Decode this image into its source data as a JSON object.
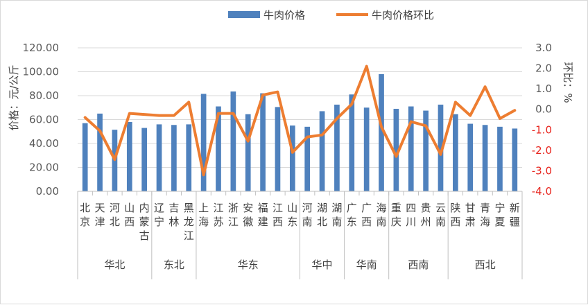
{
  "chart_data": {
    "type": "bar+line",
    "legend": {
      "position": "top",
      "entries": [
        "牛肉价格",
        "牛肉价格环比"
      ]
    },
    "y_left": {
      "label": "价格：元/公斤",
      "range": [
        0,
        120
      ],
      "ticks": [
        "120.00",
        "100.00",
        "80.00",
        "60.00",
        "40.00",
        "20.00",
        "0.00"
      ]
    },
    "y_right": {
      "label": "环比：%",
      "range": [
        -4,
        3
      ],
      "ticks": [
        "3.0",
        "2.0",
        "1.0",
        "0.0",
        "-1.0",
        "-2.0",
        "-3.0",
        "-4.0"
      ]
    },
    "grid": "horizontal",
    "categories": [
      {
        "name": "北京",
        "lines": [
          "北",
          "京"
        ]
      },
      {
        "name": "天津",
        "lines": [
          "天",
          "津"
        ]
      },
      {
        "name": "河北",
        "lines": [
          "河",
          "北"
        ]
      },
      {
        "name": "山西",
        "lines": [
          "山",
          "西"
        ]
      },
      {
        "name": "内蒙古",
        "lines": [
          "内",
          "蒙",
          "古"
        ]
      },
      {
        "name": "辽宁",
        "lines": [
          "辽",
          "宁"
        ]
      },
      {
        "name": "吉林",
        "lines": [
          "吉",
          "林"
        ]
      },
      {
        "name": "黑龙江",
        "lines": [
          "黑",
          "龙",
          "江"
        ]
      },
      {
        "name": "上海",
        "lines": [
          "上",
          "海"
        ]
      },
      {
        "name": "江苏",
        "lines": [
          "江",
          "苏"
        ]
      },
      {
        "name": "浙江",
        "lines": [
          "浙",
          "江"
        ]
      },
      {
        "name": "安徽",
        "lines": [
          "安",
          "徽"
        ]
      },
      {
        "name": "福建",
        "lines": [
          "福",
          "建"
        ]
      },
      {
        "name": "江西",
        "lines": [
          "江",
          "西"
        ]
      },
      {
        "name": "山东",
        "lines": [
          "山",
          "东"
        ]
      },
      {
        "name": "河南",
        "lines": [
          "河",
          "南"
        ]
      },
      {
        "name": "湖北",
        "lines": [
          "湖",
          "北"
        ]
      },
      {
        "name": "湖南",
        "lines": [
          "湖",
          "南"
        ]
      },
      {
        "name": "广东",
        "lines": [
          "广",
          "东"
        ]
      },
      {
        "name": "广西",
        "lines": [
          "广",
          "西"
        ]
      },
      {
        "name": "海南",
        "lines": [
          "海",
          "南"
        ]
      },
      {
        "name": "重庆",
        "lines": [
          "重",
          "庆"
        ]
      },
      {
        "name": "四川",
        "lines": [
          "四",
          "川"
        ]
      },
      {
        "name": "贵州",
        "lines": [
          "贵",
          "州"
        ]
      },
      {
        "name": "云南",
        "lines": [
          "云",
          "南"
        ]
      },
      {
        "name": "陕西",
        "lines": [
          "陕",
          "西"
        ]
      },
      {
        "name": "甘肃",
        "lines": [
          "甘",
          "肃"
        ]
      },
      {
        "name": "青海",
        "lines": [
          "青",
          "海"
        ]
      },
      {
        "name": "宁夏",
        "lines": [
          "宁",
          "夏"
        ]
      },
      {
        "name": "新疆",
        "lines": [
          "新",
          "疆"
        ]
      }
    ],
    "regions": [
      {
        "name": "华北",
        "count": 5
      },
      {
        "name": "东北",
        "count": 3
      },
      {
        "name": "华东",
        "count": 7
      },
      {
        "name": "华中",
        "count": 3
      },
      {
        "name": "华南",
        "count": 3
      },
      {
        "name": "西南",
        "count": 4
      },
      {
        "name": "西北",
        "count": 5
      }
    ],
    "series": [
      {
        "name": "牛肉价格",
        "type": "bar",
        "axis": "left",
        "color": "#4f81bd",
        "values": [
          57,
          65,
          51.5,
          58,
          53,
          56,
          55.5,
          56,
          81.5,
          71,
          83.5,
          64.5,
          82,
          70.5,
          55,
          54,
          67,
          72.5,
          81,
          70,
          98,
          69,
          71,
          67.5,
          72.5,
          64.5,
          56.5,
          55.5,
          54,
          52.5
        ]
      },
      {
        "name": "牛肉价格环比",
        "type": "line",
        "axis": "right",
        "color": "#ed7d31",
        "values": [
          -0.4,
          -1.05,
          -2.45,
          -0.2,
          -0.25,
          -0.3,
          -0.3,
          0.35,
          -3.2,
          -0.2,
          -0.2,
          -1.55,
          0.7,
          0.85,
          -2.1,
          -1.35,
          -1.25,
          -0.45,
          0.25,
          2.1,
          -0.85,
          -2.3,
          -0.6,
          -0.8,
          -2.2,
          0.35,
          -0.3,
          1.1,
          -0.45,
          -0.05
        ]
      }
    ]
  }
}
